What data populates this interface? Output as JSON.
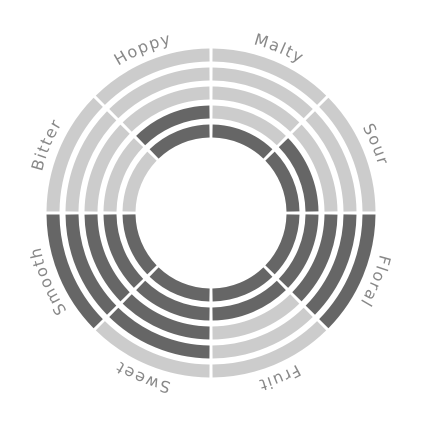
{
  "chart_data": {
    "type": "radial-bar",
    "categories": [
      "Malty",
      "Sour",
      "Floral",
      "Fruit",
      "Sweet",
      "Smooth",
      "Bitter",
      "Hoppy"
    ],
    "values": [
      1,
      2,
      5,
      2,
      4,
      5,
      0,
      2
    ],
    "max": 5,
    "colors": {
      "filled": "#666666",
      "empty": "#cccccc",
      "label": "#888888",
      "background": "#ffffff"
    }
  }
}
